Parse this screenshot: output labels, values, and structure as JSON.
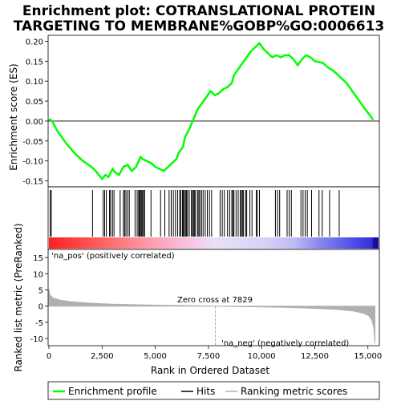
{
  "title_line1": "Enrichment plot: COTRANSLATIONAL PROTEIN",
  "title_line2": "TARGETING TO MEMBRANE%GOBP%GO:0006613",
  "colors": {
    "es_line": "#00ff00",
    "hits": "#000000",
    "metric_fill": "#b0b0b0",
    "zero_cross_line": "#999999",
    "pos_label": "#cc0000",
    "neg_label": "#0000cc"
  },
  "chart_data": [
    {
      "type": "line",
      "name": "enrichment",
      "ylabel": "Enrichment score (ES)",
      "ylim": [
        -0.165,
        0.215
      ],
      "xlim": [
        0,
        15500
      ],
      "yticks": [
        -0.15,
        -0.1,
        -0.05,
        0.0,
        0.05,
        0.1,
        0.15,
        0.2
      ],
      "ytick_labels": [
        "-0.15",
        "-0.10",
        "-0.05",
        "0.00",
        "0.05",
        "0.10",
        "0.15",
        "0.20"
      ],
      "grid": false,
      "series": [
        {
          "name": "Enrichment profile",
          "x": [
            0,
            150,
            400,
            800,
            1200,
            1600,
            2000,
            2200,
            2500,
            2650,
            2800,
            3000,
            3100,
            3300,
            3500,
            3700,
            3900,
            4100,
            4300,
            4400,
            4600,
            4800,
            5000,
            5200,
            5400,
            5600,
            5800,
            6000,
            6100,
            6300,
            6400,
            6500,
            6600,
            6800,
            7000,
            7200,
            7400,
            7600,
            7800,
            8000,
            8200,
            8400,
            8600,
            8700,
            8900,
            9100,
            9300,
            9500,
            9700,
            9900,
            10100,
            10300,
            10500,
            10700,
            10900,
            11100,
            11300,
            11500,
            11700,
            11900,
            12100,
            12300,
            12500,
            12700,
            12900,
            13100,
            13400,
            13700,
            14000,
            14400,
            14800,
            15250
          ],
          "y": [
            0.005,
            0.0,
            -0.025,
            -0.055,
            -0.08,
            -0.1,
            -0.115,
            -0.125,
            -0.145,
            -0.135,
            -0.14,
            -0.12,
            -0.128,
            -0.135,
            -0.115,
            -0.11,
            -0.125,
            -0.115,
            -0.09,
            -0.095,
            -0.1,
            -0.105,
            -0.115,
            -0.12,
            -0.125,
            -0.115,
            -0.105,
            -0.095,
            -0.08,
            -0.065,
            -0.04,
            -0.03,
            -0.02,
            0.005,
            0.03,
            0.045,
            0.06,
            0.075,
            0.065,
            0.07,
            0.08,
            0.085,
            0.095,
            0.115,
            0.13,
            0.145,
            0.16,
            0.175,
            0.185,
            0.195,
            0.18,
            0.17,
            0.16,
            0.165,
            0.16,
            0.165,
            0.165,
            0.155,
            0.14,
            0.155,
            0.165,
            0.16,
            0.15,
            0.148,
            0.145,
            0.135,
            0.125,
            0.11,
            0.095,
            0.065,
            0.035,
            0.003
          ]
        }
      ]
    },
    {
      "type": "bar",
      "name": "hits",
      "legend_label": "Hits",
      "x": [
        60,
        110,
        2050,
        2550,
        2620,
        2700,
        2850,
        2900,
        2990,
        3060,
        3350,
        3500,
        3560,
        3620,
        3700,
        3780,
        4050,
        4150,
        4220,
        4260,
        4300,
        4350,
        4400,
        4450,
        4500,
        4800,
        5250,
        5450,
        5650,
        5750,
        5850,
        5950,
        6050,
        6150,
        6200,
        6280,
        6320,
        6370,
        6420,
        6470,
        6520,
        6600,
        6700,
        6750,
        6800,
        6850,
        6900,
        7000,
        7050,
        7100,
        7180,
        7250,
        7350,
        7450,
        7550,
        7650,
        8050,
        8150,
        8250,
        8400,
        8500,
        8600,
        8650,
        8700,
        8800,
        8900,
        9000,
        9050,
        9100,
        9150,
        9250,
        9300,
        9450,
        9550,
        9750,
        9800,
        9900,
        10650,
        10750,
        10850,
        11200,
        11300,
        11400,
        11850,
        11950,
        12050,
        12150,
        12350,
        12700,
        12850,
        13200,
        13650
      ]
    },
    {
      "type": "area",
      "name": "ranked_list_metric",
      "ylabel": "Ranked list metric (PreRanked)",
      "xlabel": "Rank in Ordered Dataset",
      "ylim": [
        -12.2,
        17.5
      ],
      "xlim": [
        0,
        15500
      ],
      "yticks": [
        -10,
        -5,
        0,
        5,
        10,
        15
      ],
      "ytick_labels": [
        "-10",
        "-5",
        "0",
        "5",
        "10",
        "15"
      ],
      "xticks": [
        0,
        2500,
        5000,
        7500,
        10000,
        12500,
        15000
      ],
      "xtick_labels": [
        "0",
        "2,500",
        "5,000",
        "7,500",
        "10,000",
        "12,500",
        "15,000"
      ],
      "x": [
        0,
        30,
        80,
        200,
        500,
        1000,
        2000,
        3000,
        5000,
        7000,
        7829,
        9000,
        11000,
        12500,
        13500,
        14300,
        14800,
        15050,
        15200,
        15280,
        15330
      ],
      "y": [
        5.2,
        4.0,
        3.2,
        2.5,
        1.9,
        1.4,
        0.9,
        0.6,
        0.3,
        0.1,
        0.0,
        -0.15,
        -0.4,
        -0.7,
        -1.0,
        -1.5,
        -2.2,
        -3.0,
        -4.5,
        -7.0,
        -11.5
      ],
      "zero_cross_label": "Zero cross at 7829",
      "pos_label": "'na_pos' (positively correlated)",
      "neg_label": "'na_neg' (negatively correlated)"
    }
  ],
  "legend": {
    "items": [
      {
        "label": "Enrichment profile",
        "color": "#00ff00"
      },
      {
        "label": "Hits",
        "color": "#000000"
      },
      {
        "label": "Ranking metric scores",
        "color": "#b0b0b0"
      }
    ]
  }
}
